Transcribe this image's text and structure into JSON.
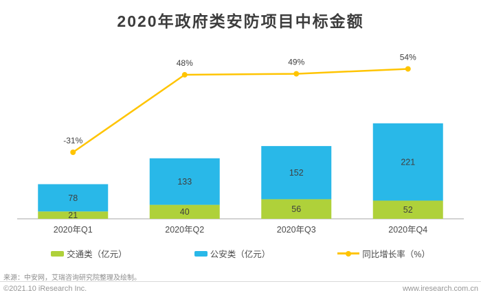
{
  "title": "2020年政府类安防项目中标金额",
  "chart_data": {
    "type": "bar",
    "subtype": "stacked-bars-with-growth-line",
    "stacked": true,
    "grid": false,
    "value_labels": true,
    "legend_position": "bottom",
    "categories": [
      "2020年Q1",
      "2020年Q2",
      "2020年Q3",
      "2020年Q4"
    ],
    "series": [
      {
        "name": "交通类（亿元）",
        "kind": "bar",
        "values": [
          21,
          40,
          56,
          52
        ],
        "color": "#AFD13A"
      },
      {
        "name": "公安类（亿元）",
        "kind": "bar",
        "values": [
          78,
          133,
          152,
          221
        ],
        "color": "#29B8E8"
      },
      {
        "name": "同比增长率（%）",
        "kind": "line",
        "values": [
          -31,
          48,
          49,
          54
        ],
        "color": "#FFC400",
        "unit": "%"
      }
    ],
    "totals": [
      99,
      173,
      208,
      273
    ],
    "growth_labels": [
      "-31%",
      "48%",
      "49%",
      "54%"
    ],
    "axis_color": "#A6A6A6"
  },
  "footer": {
    "source": "来源：中安网，艾瑞咨询研究院整理及绘制。",
    "copyright": "©2021.10 iResearch Inc.",
    "website": "www.iresearch.com.cn"
  }
}
